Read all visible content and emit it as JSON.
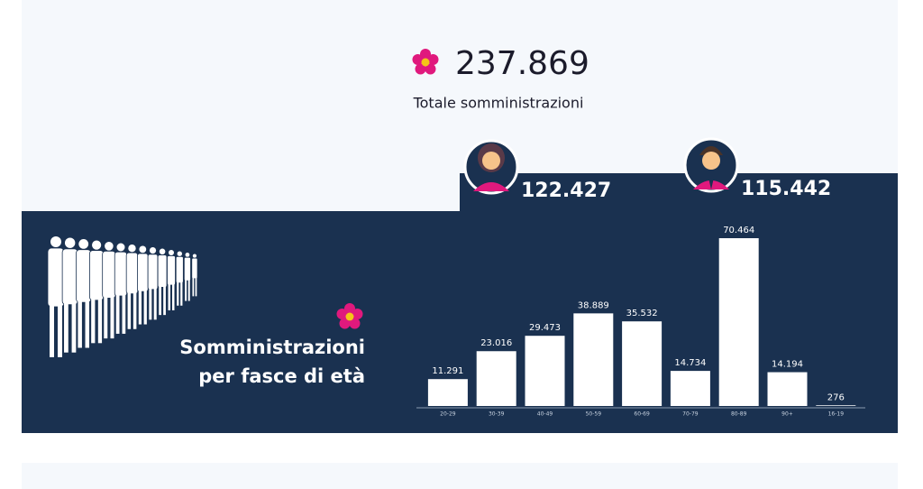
{
  "header": {
    "total": "237.869",
    "total_label": "Totale somministrazioni"
  },
  "gender": {
    "female": "122.427",
    "male": "115.442"
  },
  "chart_data": {
    "type": "bar",
    "title": [
      "Somministrazioni",
      "per fasce di età"
    ],
    "categories": [
      "20-29",
      "30-39",
      "40-49",
      "50-59",
      "60-69",
      "70-79",
      "80-89",
      "90+",
      "16-19"
    ],
    "values": [
      11291,
      23016,
      29473,
      38889,
      35532,
      14734,
      70464,
      14194,
      276
    ],
    "value_labels": [
      "11.291",
      "23.016",
      "29.473",
      "38.889",
      "35.532",
      "14.734",
      "70.464",
      "14.194",
      "276"
    ],
    "color": "#ffffff"
  }
}
